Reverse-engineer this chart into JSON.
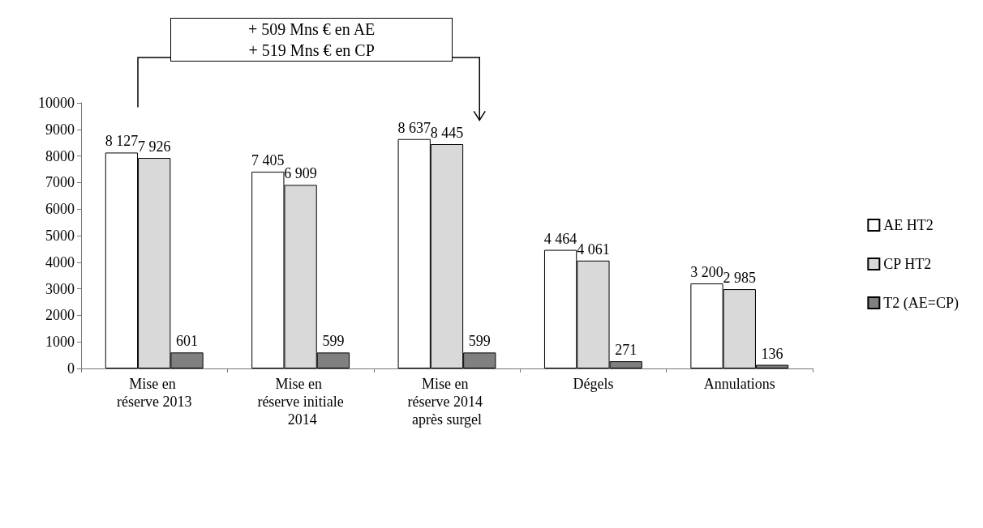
{
  "chart_data": {
    "type": "bar",
    "categories": [
      "Mise en réserve 2013",
      "Mise en réserve initiale 2014",
      "Mise en réserve 2014 après surgel",
      "Dégels",
      "Annulations"
    ],
    "series": [
      {
        "name": "AE HT2",
        "color": "#ffffff",
        "values": [
          8127,
          7405,
          8637,
          4464,
          3200
        ],
        "value_labels": [
          "8 127",
          "7 405",
          "8 637",
          "4 464",
          "3 200"
        ]
      },
      {
        "name": "CP HT2",
        "color": "#d9d9d9",
        "values": [
          7926,
          6909,
          8445,
          4061,
          2985
        ],
        "value_labels": [
          "7 926",
          "6 909",
          "8 445",
          "4 061",
          "2 985"
        ]
      },
      {
        "name": "T2 (AE=CP)",
        "color": "#808080",
        "values": [
          601,
          599,
          599,
          271,
          136
        ],
        "value_labels": [
          "601",
          "599",
          "599",
          "271",
          "136"
        ]
      }
    ],
    "ylim": [
      0,
      10000
    ],
    "yticks": [
      0,
      1000,
      2000,
      3000,
      4000,
      5000,
      6000,
      7000,
      8000,
      9000,
      10000
    ],
    "grid": false,
    "legend": "right",
    "annotations": [
      "+ 509 Mns € en AE",
      "+ 519 Mns € en CP"
    ]
  }
}
